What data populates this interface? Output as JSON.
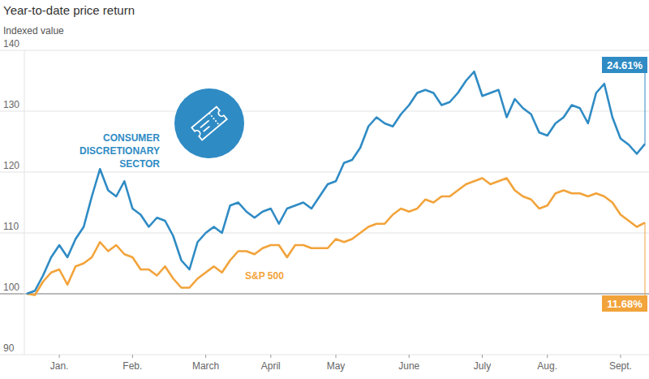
{
  "chart_data": {
    "type": "line",
    "title": "Year-to-date price return",
    "subtitle": "Indexed value",
    "categories": [
      null,
      null,
      null,
      null,
      "Jan.",
      null,
      null,
      null,
      null,
      null,
      null,
      null,
      null,
      "Feb.",
      null,
      null,
      null,
      null,
      null,
      null,
      null,
      null,
      "March",
      null,
      null,
      null,
      null,
      null,
      null,
      null,
      "April",
      null,
      null,
      null,
      null,
      null,
      null,
      null,
      "May",
      null,
      null,
      null,
      null,
      null,
      null,
      null,
      null,
      "June",
      null,
      null,
      null,
      null,
      null,
      null,
      null,
      null,
      "July",
      null,
      null,
      null,
      null,
      null,
      null,
      null,
      "Aug.",
      null,
      null,
      null,
      null,
      null,
      null,
      null,
      null,
      "Sept.",
      null,
      null,
      null
    ],
    "series": [
      {
        "name": "CONSUMER DISCRETIONARY SECTOR",
        "color": "#2f8bc4",
        "values": [
          100,
          100.5,
          103,
          106,
          108,
          106,
          109,
          111,
          116,
          120.5,
          117,
          116,
          118.5,
          114,
          113,
          111,
          112.5,
          112,
          109.5,
          105.5,
          104,
          108.5,
          110,
          111,
          110,
          114.5,
          115,
          113.5,
          112.5,
          113.5,
          114,
          111.5,
          114,
          114.5,
          115,
          114,
          116,
          118,
          118.5,
          121.5,
          122,
          124,
          127.5,
          129,
          128,
          127.5,
          129.5,
          131,
          133,
          133.5,
          133,
          131,
          131.5,
          133,
          135,
          136.5,
          132.5,
          133,
          133.5,
          129,
          132,
          130.5,
          129.5,
          126.5,
          126,
          128,
          129,
          131,
          130.5,
          128,
          133,
          134.5,
          129,
          125.5,
          124.5,
          123,
          124.61
        ]
      },
      {
        "name": "S&P 500",
        "color": "#f2a33a",
        "values": [
          100,
          99.8,
          102,
          103.5,
          104,
          101.5,
          104.5,
          105,
          106,
          108.5,
          107,
          108,
          106.5,
          106,
          104,
          104,
          103,
          104.5,
          102.5,
          101,
          101,
          102.5,
          103.5,
          104.5,
          103.5,
          105.5,
          107,
          107,
          106.5,
          107.5,
          108,
          108,
          106,
          108,
          108,
          107.5,
          107.5,
          107.5,
          109,
          108.5,
          109,
          110,
          111,
          111.5,
          111.5,
          113,
          114,
          113.5,
          114,
          115.5,
          115,
          116,
          116,
          117,
          118,
          118.5,
          119,
          118,
          118.5,
          119,
          117,
          116,
          115.5,
          114,
          114.5,
          116.5,
          117,
          116.5,
          116.5,
          116,
          116.5,
          116,
          115,
          113,
          112,
          111,
          111.68
        ]
      }
    ],
    "annotations": [
      "24.61%",
      "11.68%"
    ],
    "ylim": [
      90,
      140
    ],
    "yticks": [
      90,
      100,
      110,
      120,
      130,
      140
    ],
    "grid": true
  }
}
